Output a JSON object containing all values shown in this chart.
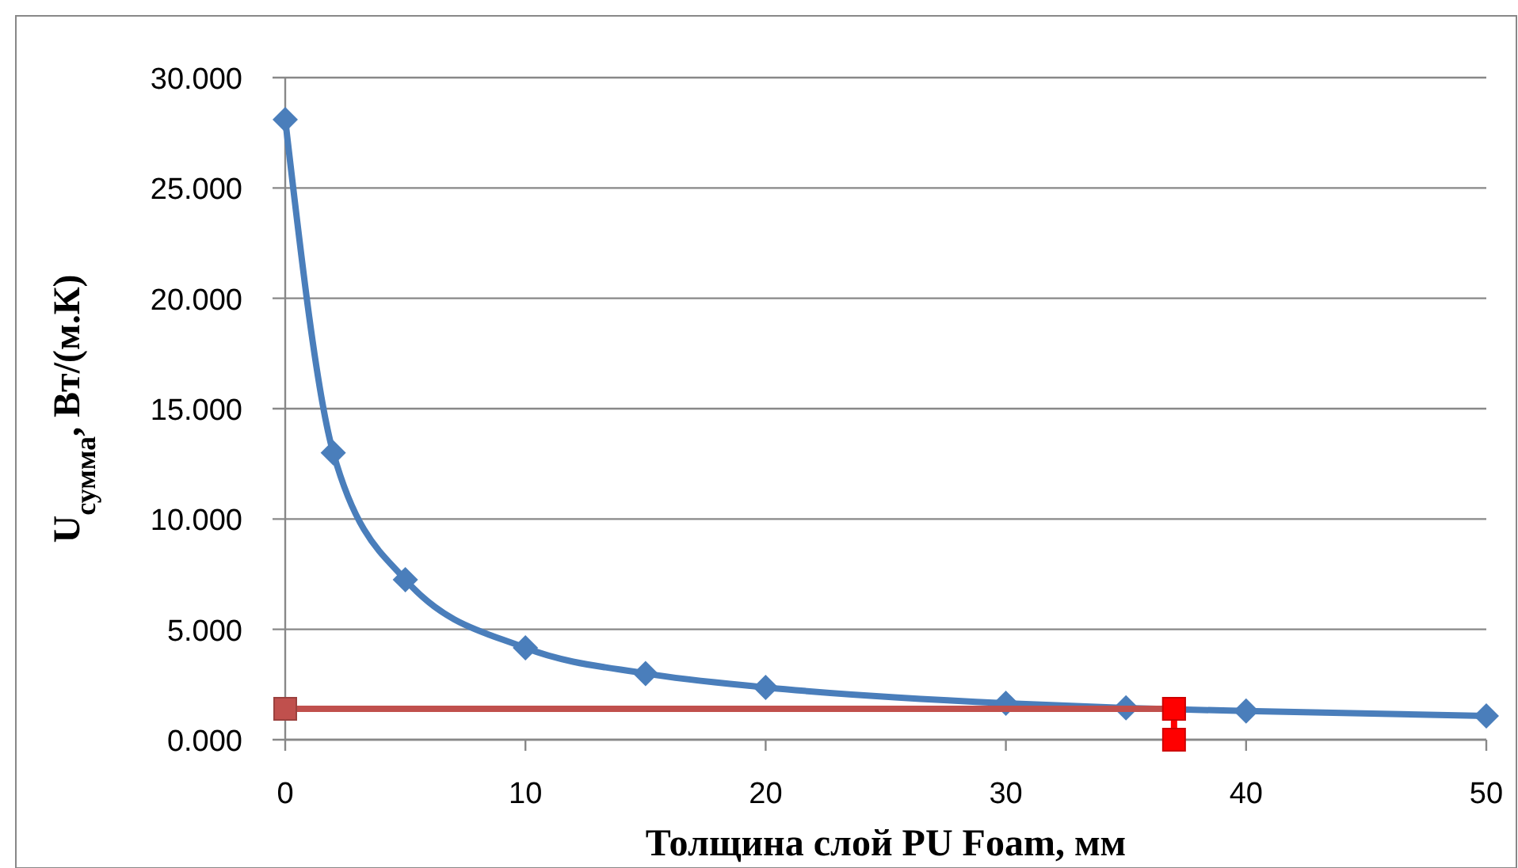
{
  "chart_data": {
    "type": "line",
    "xlabel": "Толщина слой PU Foam, мм",
    "ylabel": "U$_{сумма}$, Вт/(м.К)",
    "xlim": [
      0,
      50
    ],
    "xticks": [
      0,
      10,
      20,
      30,
      40,
      50
    ],
    "ylim": [
      0,
      30
    ],
    "yticks": [
      {
        "value": 0,
        "label": "0.000"
      },
      {
        "value": 5,
        "label": "5.000"
      },
      {
        "value": 10,
        "label": "10.000"
      },
      {
        "value": 15,
        "label": "15.000"
      },
      {
        "value": 20,
        "label": "20.000"
      },
      {
        "value": 25,
        "label": "25.000"
      },
      {
        "value": 30,
        "label": "30.000"
      }
    ],
    "grid": "y",
    "series": [
      {
        "color": "#4a7ebb",
        "marker": "diamond",
        "x": [
          0,
          2,
          5,
          10,
          15,
          20,
          30,
          35,
          40,
          50
        ],
        "values": [
          28.1,
          13.0,
          7.25,
          4.16,
          3.0,
          2.37,
          1.65,
          1.44,
          1.3,
          1.08
        ]
      },
      {
        "color": "#c0504d",
        "marker": "square",
        "x": [
          0,
          37
        ],
        "values": [
          1.4,
          1.4
        ]
      },
      {
        "color": "#ff0000",
        "marker": "square",
        "x": [
          37,
          37
        ],
        "values": [
          1.4,
          0
        ]
      }
    ]
  }
}
